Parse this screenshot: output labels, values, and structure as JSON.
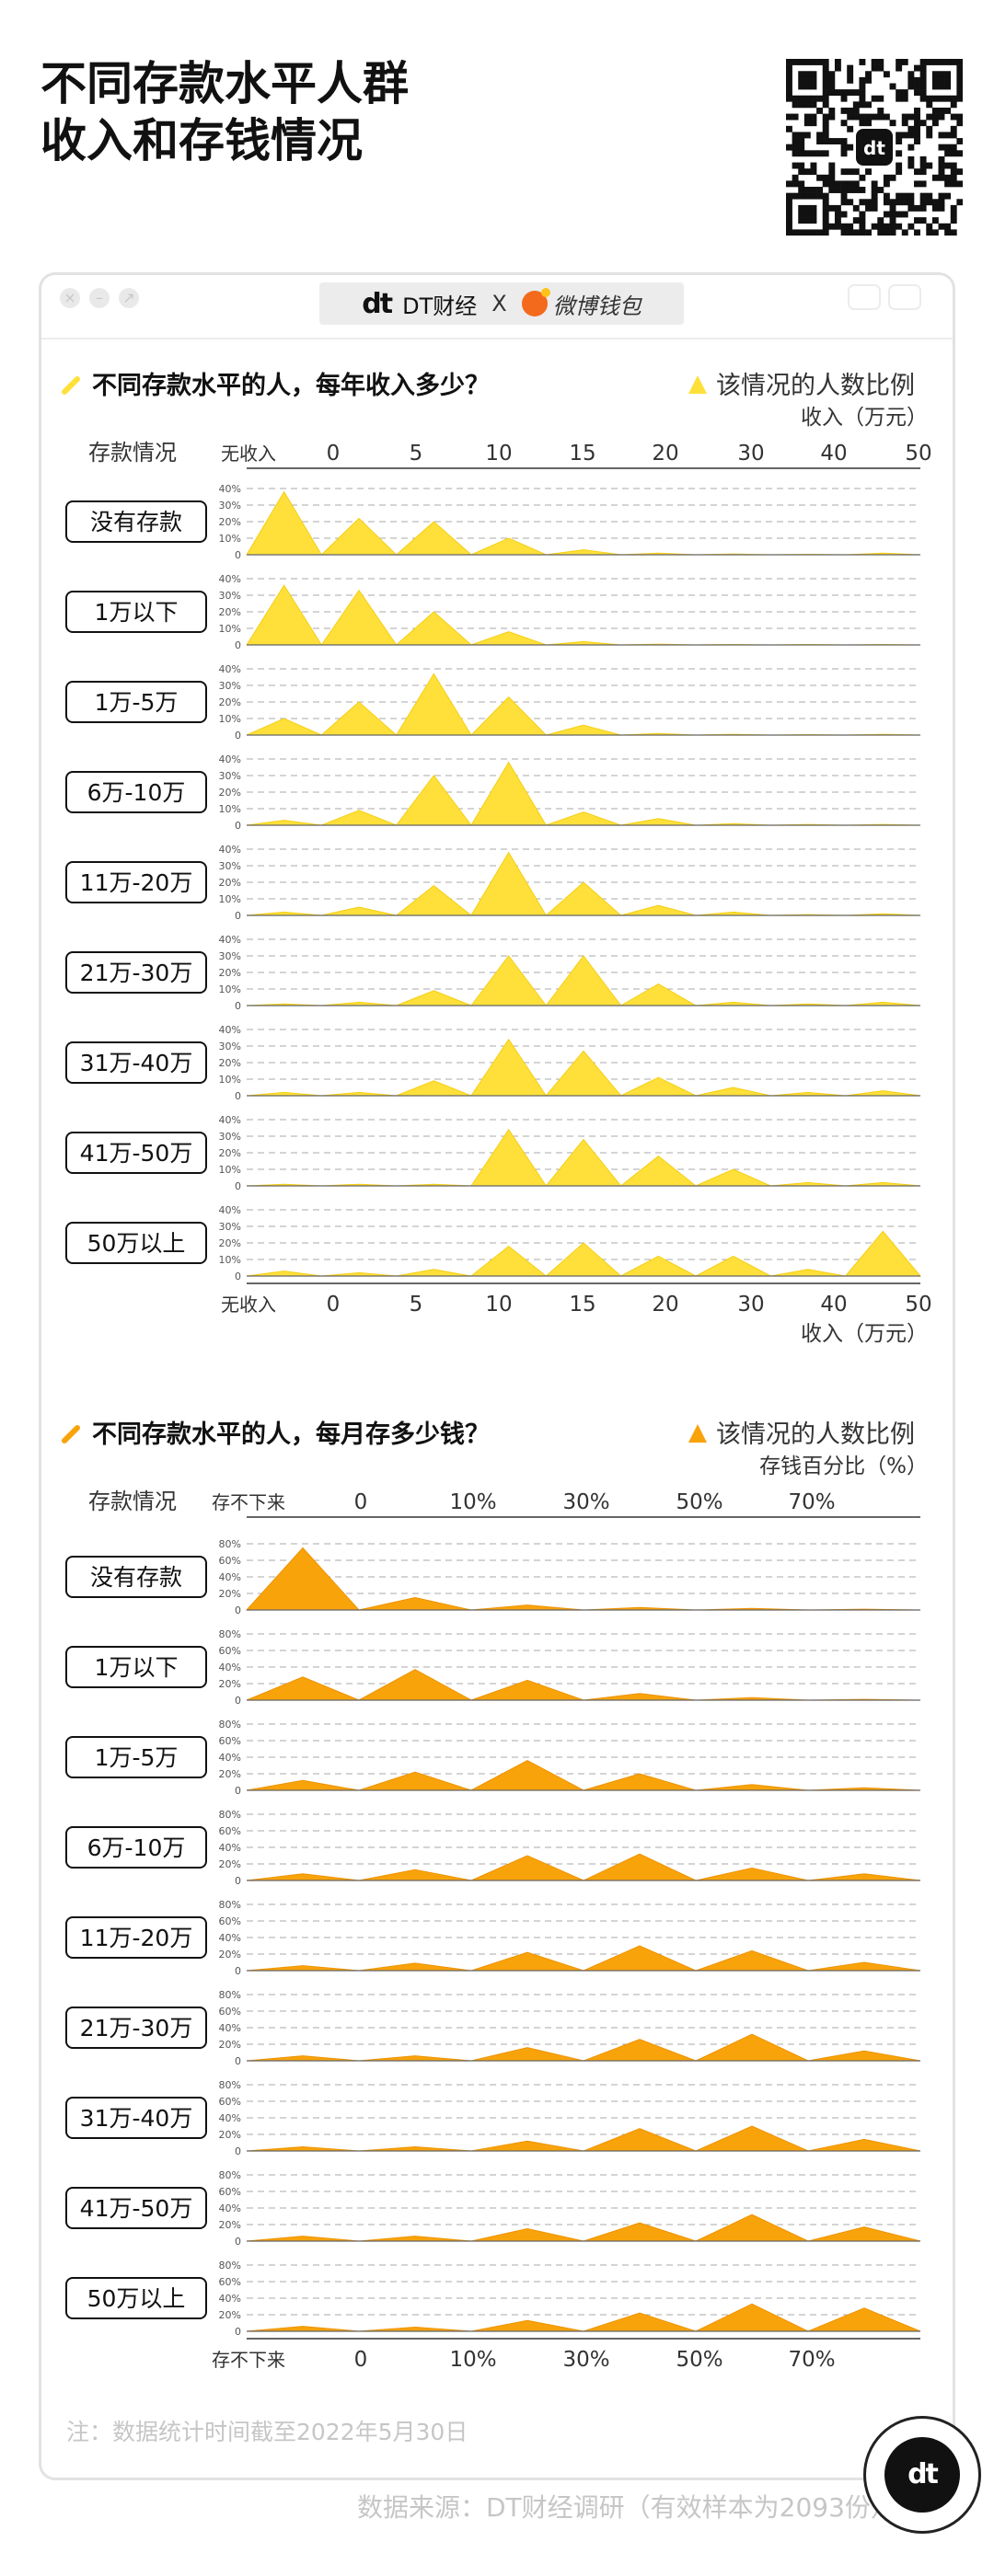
{
  "page": {
    "title_line1": "不同存款水平人群",
    "title_line2": "收入和存钱情况",
    "brand_logo": "dt",
    "brand_name": "DT财经",
    "brand_x": "X",
    "partner_name": "微博钱包",
    "note": "注：数据统计时间截至2022年5月30日",
    "source": "数据来源：DT财经调研（有效样本为2093份）",
    "badge_logo": "dt",
    "colors": {
      "income": "#FFE03A",
      "income_stroke": "#F5CE12",
      "saving": "#F9A30B",
      "saving_stroke": "#EE9300",
      "accent": "#111111"
    }
  },
  "chart_data": [
    {
      "type": "area",
      "title": "不同存款水平的人，每年收入多少？",
      "legend": "该情况的人数比例",
      "xlabel": "收入（万元）",
      "row_header": "存款情况",
      "x_tick_labels": [
        "无收入",
        "0",
        "5",
        "10",
        "15",
        "20",
        "30",
        "40",
        "50"
      ],
      "y_tick_labels": [
        "40%",
        "30%",
        "20%",
        "10%",
        "0"
      ],
      "ylim": [
        0,
        40
      ],
      "categories": [
        "无收入",
        "0-5",
        "5-10",
        "10-15",
        "15-20",
        "20-30",
        "30-40",
        "40-50",
        "50以上"
      ],
      "series": [
        {
          "name": "没有存款",
          "values": [
            38,
            22,
            20,
            10,
            3,
            1,
            0.5,
            0.3,
            1
          ]
        },
        {
          "name": "1万以下",
          "values": [
            36,
            33,
            20,
            8,
            2,
            0.5,
            0.3,
            0.2,
            0.3
          ]
        },
        {
          "name": "1万-5万",
          "values": [
            10,
            20,
            37,
            23,
            6,
            1,
            0.5,
            0.3,
            0.5
          ]
        },
        {
          "name": "6万-10万",
          "values": [
            3,
            9,
            30,
            38,
            8,
            4,
            1,
            0.5,
            0.5
          ]
        },
        {
          "name": "11万-20万",
          "values": [
            2,
            5,
            18,
            38,
            20,
            6,
            2,
            0.5,
            1
          ]
        },
        {
          "name": "21万-30万",
          "values": [
            1,
            2,
            9,
            30,
            30,
            13,
            2,
            1,
            2
          ]
        },
        {
          "name": "31万-40万",
          "values": [
            2,
            2,
            9,
            34,
            27,
            11,
            5,
            2,
            3
          ]
        },
        {
          "name": "41万-50万",
          "values": [
            1,
            1,
            1,
            34,
            28,
            18,
            10,
            2,
            2
          ]
        },
        {
          "name": "50万以上",
          "values": [
            3,
            2,
            4,
            18,
            20,
            12,
            12,
            4,
            27
          ]
        }
      ]
    },
    {
      "type": "area",
      "title": "不同存款水平的人，每月存多少钱？",
      "legend": "该情况的人数比例",
      "xlabel": "存钱百分比（%）",
      "row_header": "存款情况",
      "x_tick_labels": [
        "存不下来",
        "0",
        "10%",
        "30%",
        "50%",
        "70%"
      ],
      "y_tick_labels": [
        "80%",
        "60%",
        "40%",
        "20%",
        "0"
      ],
      "ylim": [
        0,
        80
      ],
      "categories": [
        "存不下来",
        "0-10%",
        "10-30%",
        "30-50%",
        "50-70%",
        "70%以上"
      ],
      "series": [
        {
          "name": "没有存款",
          "values": [
            75,
            15,
            6,
            3,
            2,
            1
          ]
        },
        {
          "name": "1万以下",
          "values": [
            28,
            37,
            24,
            8,
            3,
            1
          ]
        },
        {
          "name": "1万-5万",
          "values": [
            12,
            22,
            36,
            20,
            7,
            3
          ]
        },
        {
          "name": "6万-10万",
          "values": [
            8,
            13,
            30,
            32,
            15,
            8
          ]
        },
        {
          "name": "11万-20万",
          "values": [
            6,
            9,
            22,
            30,
            24,
            10
          ]
        },
        {
          "name": "21万-30万",
          "values": [
            6,
            6,
            16,
            26,
            32,
            12
          ]
        },
        {
          "name": "31万-40万",
          "values": [
            5,
            5,
            12,
            27,
            30,
            14
          ]
        },
        {
          "name": "41万-50万",
          "values": [
            6,
            6,
            15,
            22,
            32,
            17
          ]
        },
        {
          "name": "50万以上",
          "values": [
            6,
            5,
            13,
            22,
            33,
            28
          ]
        }
      ]
    }
  ]
}
